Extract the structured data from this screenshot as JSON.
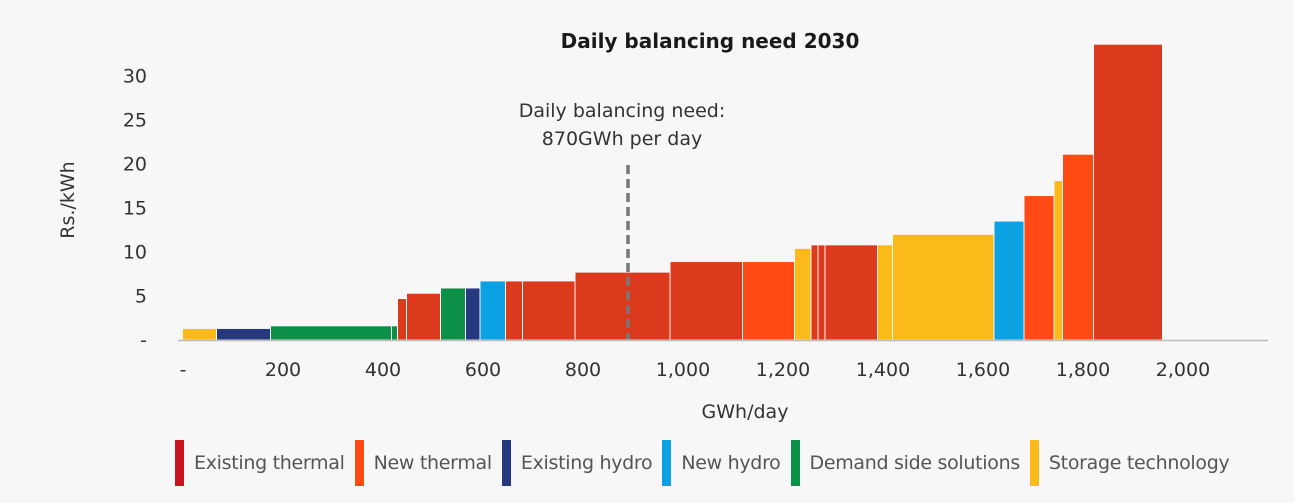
{
  "chart_data": {
    "type": "bar",
    "title": "Daily balancing need 2030",
    "xlabel": "GWh/day",
    "ylabel": "Rs./kWh",
    "x_ticks": [
      "-",
      "200",
      "400",
      "600",
      "800",
      "1,000",
      "1,200",
      "1,400",
      "1,600",
      "1,800",
      "2,000"
    ],
    "x_tick_values": [
      0,
      200,
      400,
      600,
      800,
      1000,
      1200,
      1400,
      1600,
      1800,
      2000
    ],
    "y_ticks": [
      "-",
      "5",
      "10",
      "15",
      "20",
      "25",
      "30"
    ],
    "y_tick_values": [
      0,
      5,
      10,
      15,
      20,
      25,
      30
    ],
    "xlim": [
      0,
      2150
    ],
    "ylim": [
      0,
      34
    ],
    "annotation": {
      "text_line1": "Daily balancing need:",
      "text_line2": "870GWh per day",
      "x": 890
    },
    "categories": [
      "Existing thermal",
      "New thermal",
      "Existing hydro",
      "New hydro",
      "Demand side solutions",
      "Storage technology"
    ],
    "colors": {
      "Existing thermal": "#c8141e",
      "New thermal": "#ff4a14",
      "Existing hydro": "#26397e",
      "New hydro": "#0ba1e2",
      "Demand side solutions": "#0c8f46",
      "Storage technology": "#fcb91a",
      "bar_red": "#dc3a1c"
    },
    "segments": [
      {
        "x0": 0,
        "x1": 68,
        "y": 1.2,
        "cat": "Storage technology"
      },
      {
        "x0": 68,
        "x1": 176,
        "y": 1.2,
        "cat": "Existing hydro"
      },
      {
        "x0": 176,
        "x1": 418,
        "y": 1.5,
        "cat": "Demand side solutions"
      },
      {
        "x0": 418,
        "x1": 430,
        "y": 1.5,
        "cat": "Demand side solutions"
      },
      {
        "x0": 430,
        "x1": 448,
        "y": 4.6,
        "cat": "Existing thermal"
      },
      {
        "x0": 448,
        "x1": 516,
        "y": 5.2,
        "cat": "Existing thermal"
      },
      {
        "x0": 516,
        "x1": 566,
        "y": 5.8,
        "cat": "Demand side solutions"
      },
      {
        "x0": 566,
        "x1": 595,
        "y": 5.8,
        "cat": "Existing hydro"
      },
      {
        "x0": 595,
        "x1": 646,
        "y": 6.6,
        "cat": "New hydro"
      },
      {
        "x0": 646,
        "x1": 680,
        "y": 6.6,
        "cat": "Existing thermal"
      },
      {
        "x0": 680,
        "x1": 785,
        "y": 6.6,
        "cat": "Existing thermal"
      },
      {
        "x0": 785,
        "x1": 975,
        "y": 7.6,
        "cat": "Existing thermal"
      },
      {
        "x0": 975,
        "x1": 1120,
        "y": 8.8,
        "cat": "Existing thermal"
      },
      {
        "x0": 1120,
        "x1": 1224,
        "y": 8.8,
        "cat": "New thermal"
      },
      {
        "x0": 1224,
        "x1": 1257,
        "y": 10.3,
        "cat": "Storage technology"
      },
      {
        "x0": 1257,
        "x1": 1271,
        "y": 10.7,
        "cat": "Existing thermal"
      },
      {
        "x0": 1271,
        "x1": 1285,
        "y": 10.7,
        "cat": "Existing thermal"
      },
      {
        "x0": 1285,
        "x1": 1390,
        "y": 10.7,
        "cat": "Existing thermal"
      },
      {
        "x0": 1390,
        "x1": 1420,
        "y": 10.7,
        "cat": "Storage technology"
      },
      {
        "x0": 1420,
        "x1": 1623,
        "y": 11.9,
        "cat": "Storage technology"
      },
      {
        "x0": 1623,
        "x1": 1683,
        "y": 13.4,
        "cat": "New hydro"
      },
      {
        "x0": 1683,
        "x1": 1743,
        "y": 16.3,
        "cat": "New thermal"
      },
      {
        "x0": 1743,
        "x1": 1760,
        "y": 18.0,
        "cat": "Storage technology"
      },
      {
        "x0": 1760,
        "x1": 1822,
        "y": 21.0,
        "cat": "New thermal"
      },
      {
        "x0": 1822,
        "x1": 1960,
        "y": 33.5,
        "cat": "Existing thermal"
      }
    ]
  }
}
